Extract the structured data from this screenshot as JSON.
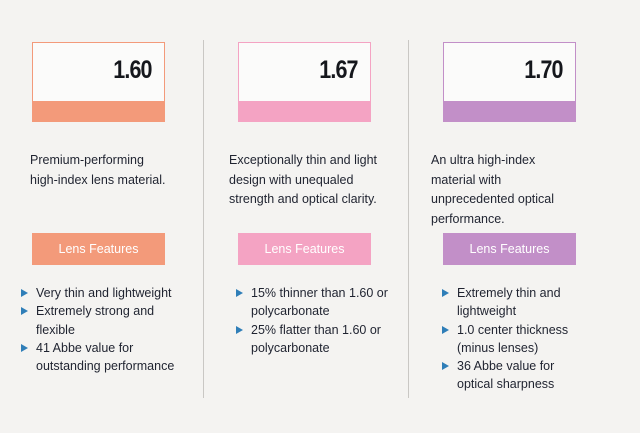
{
  "colors": {
    "col1_accent": "#f39a7a",
    "col2_accent": "#f4a3c3",
    "col3_accent": "#c28fc8",
    "bullet": "#2f7eb8",
    "divider": "#c9c7c4"
  },
  "icons": {
    "bullet": "right-triangle-icon"
  },
  "columns": [
    {
      "index": "1.60",
      "description": "Premium-performing high-index lens material.",
      "features_label": "Lens Features",
      "features": [
        "Very thin and lightweight",
        "Extremely strong and flexible",
        "41 Abbe value for outstanding performance"
      ]
    },
    {
      "index": "1.67",
      "description": "Exceptionally thin and light design with unequaled strength and optical clarity.",
      "features_label": "Lens Features",
      "features": [
        "15% thinner than 1.60 or polycarbonate",
        "25% flatter than 1.60 or polycarbonate"
      ]
    },
    {
      "index": "1.70",
      "description": "An ultra high-index material with unprecedented optical performance.",
      "features_label": "Lens Features",
      "features": [
        "Extremely thin and lightweight",
        "1.0 center thickness (minus lenses)",
        "36 Abbe value for optical sharpness"
      ]
    }
  ]
}
